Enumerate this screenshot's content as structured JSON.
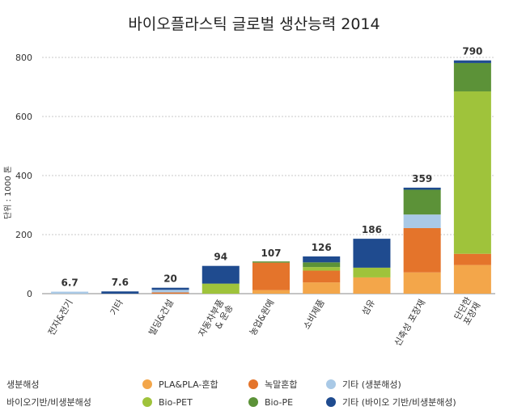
{
  "chart_data": {
    "type": "bar",
    "stacked": true,
    "title": "바이오플라스틱 글로벌 생산능력 2014",
    "ylabel": "단위 : 1000 톤",
    "ylim": [
      0,
      800
    ],
    "yticks": [
      "0",
      "200",
      "400",
      "600",
      "800"
    ],
    "grid": true,
    "legend_position": "bottom",
    "categories": [
      "전자&전기",
      "기타",
      "빌딩&건설",
      "자동차부품 & 운송",
      "농업&원예",
      "소비제품",
      "섬유",
      "신축성 포장재",
      "단단한 포장재"
    ],
    "totals": [
      "6.7",
      "7.6",
      "20",
      "94",
      "107",
      "126",
      "186",
      "359",
      "790"
    ],
    "series": [
      {
        "name": "PLA&PLA-혼합",
        "color": "#f3a64a",
        "values": [
          0,
          0,
          0,
          0,
          12,
          38,
          55,
          72,
          97
        ]
      },
      {
        "name": "녹말혼합",
        "color": "#e4742b",
        "values": [
          0,
          0,
          4,
          0,
          93,
          40,
          0,
          150,
          38
        ]
      },
      {
        "name": "기타 (생분해성)",
        "color": "#a9c9e6",
        "values": [
          6.7,
          0,
          9,
          0,
          0,
          0,
          0,
          46,
          0
        ]
      },
      {
        "name": "Bio-PET",
        "color": "#9fc33b",
        "values": [
          0,
          0,
          0,
          34,
          0,
          12,
          33,
          0,
          550
        ]
      },
      {
        "name": "Bio-PE",
        "color": "#5c9238",
        "values": [
          0,
          0,
          0,
          0,
          2,
          16,
          0,
          84,
          96
        ]
      },
      {
        "name": "기타 (바이오 기반/비생분해성)",
        "color": "#1f4b8f",
        "values": [
          0,
          7.6,
          7,
          60,
          0,
          20,
          98,
          7,
          9
        ]
      }
    ]
  },
  "legend": {
    "group1_label": "생분해성",
    "group2_label": "바이오기반/비생분해성"
  }
}
